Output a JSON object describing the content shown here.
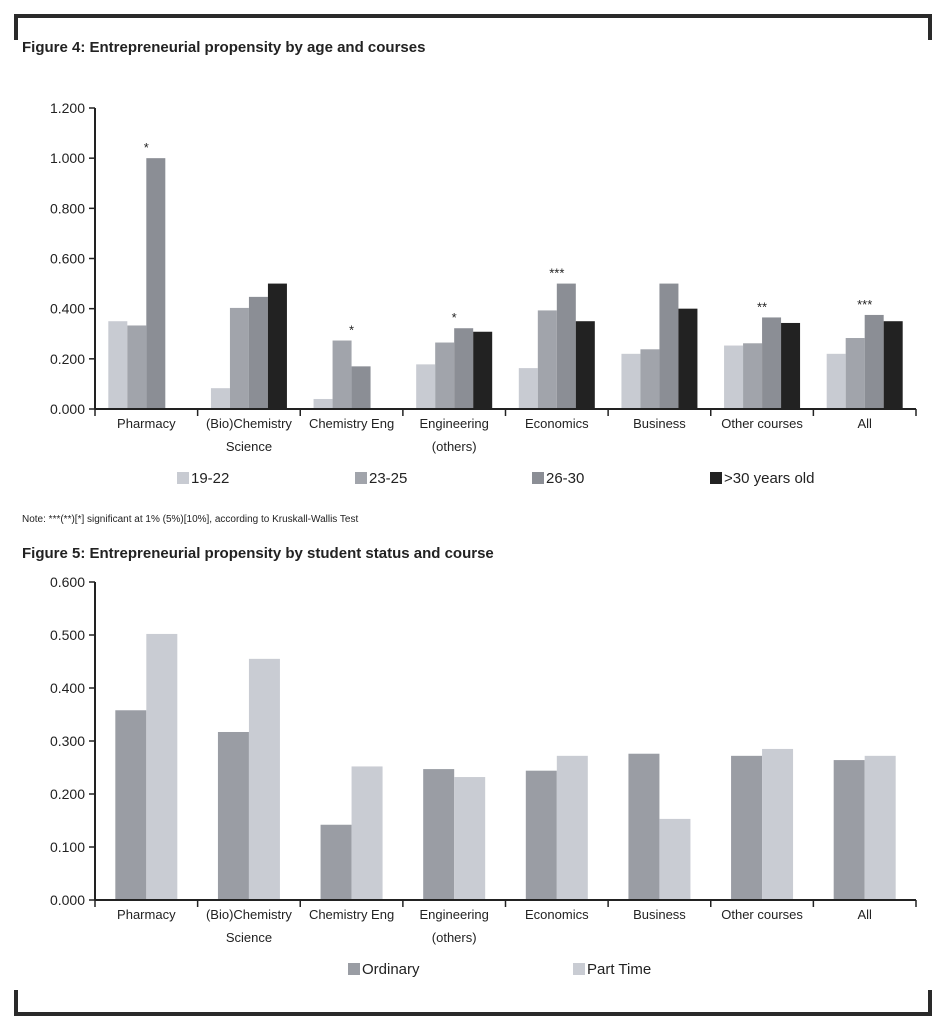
{
  "figures": {
    "fig4_title": "Figure 4:  Entrepreneurial propensity by age and courses",
    "note": "Note: ***(**)[*] significant at 1% (5%)[10%], according to Kruskall-Wallis Test",
    "fig5_title": "Figure 5: Entrepreneurial propensity by student status and course"
  },
  "chart_data": [
    {
      "type": "bar",
      "title": "Figure 4:  Entrepreneurial propensity by age and courses",
      "categories": [
        [
          "Pharmacy"
        ],
        [
          "(Bio)Chemistry",
          "Science"
        ],
        [
          "Chemistry Eng"
        ],
        [
          "Engineering",
          "(others)"
        ],
        [
          "Economics"
        ],
        [
          "Business"
        ],
        [
          "Other courses"
        ],
        [
          "All"
        ]
      ],
      "ylim": [
        0,
        1.2
      ],
      "yticks": [
        "0.000",
        "0.200",
        "0.400",
        "0.600",
        "0.800",
        "1.000",
        "1.200"
      ],
      "legend_position": "bottom",
      "grid": false,
      "series": [
        {
          "name": "19-22",
          "color": "#c8cbd2",
          "values": [
            0.35,
            0.083,
            0.04,
            0.178,
            0.163,
            0.22,
            0.253,
            0.22
          ]
        },
        {
          "name": "23-25",
          "color": "#a1a4ab",
          "values": [
            0.333,
            0.403,
            0.273,
            0.265,
            0.393,
            0.238,
            0.262,
            0.283
          ]
        },
        {
          "name": "26-30",
          "color": "#8b8e95",
          "values": [
            1.0,
            0.447,
            0.17,
            0.322,
            0.5,
            0.5,
            0.365,
            0.375
          ]
        },
        {
          "name": ">30 years old",
          "color": "#222222",
          "values": [
            null,
            0.5,
            null,
            0.308,
            0.35,
            0.4,
            0.343,
            0.35
          ]
        }
      ],
      "annotations": [
        {
          "category": 0,
          "text": "*"
        },
        {
          "category": 2,
          "text": "*"
        },
        {
          "category": 3,
          "text": "*"
        },
        {
          "category": 4,
          "text": "***"
        },
        {
          "category": 6,
          "text": "**"
        },
        {
          "category": 7,
          "text": "***"
        }
      ]
    },
    {
      "type": "bar",
      "title": "Figure 5: Entrepreneurial propensity by student status and course",
      "categories": [
        [
          "Pharmacy"
        ],
        [
          "(Bio)Chemistry",
          "Science"
        ],
        [
          "Chemistry Eng"
        ],
        [
          "Engineering",
          "(others)"
        ],
        [
          "Economics"
        ],
        [
          "Business"
        ],
        [
          "Other courses"
        ],
        [
          "All"
        ]
      ],
      "ylim": [
        0,
        0.6
      ],
      "yticks": [
        "0.000",
        "0.100",
        "0.200",
        "0.300",
        "0.400",
        "0.500",
        "0.600"
      ],
      "legend_position": "bottom",
      "grid": false,
      "series": [
        {
          "name": "Ordinary",
          "color": "#9a9da4",
          "values": [
            0.358,
            0.317,
            0.142,
            0.247,
            0.244,
            0.276,
            0.272,
            0.264
          ]
        },
        {
          "name": "Part Time",
          "color": "#c9ccd3",
          "values": [
            0.502,
            0.455,
            0.252,
            0.232,
            0.272,
            0.153,
            0.285,
            0.272
          ]
        }
      ]
    }
  ]
}
